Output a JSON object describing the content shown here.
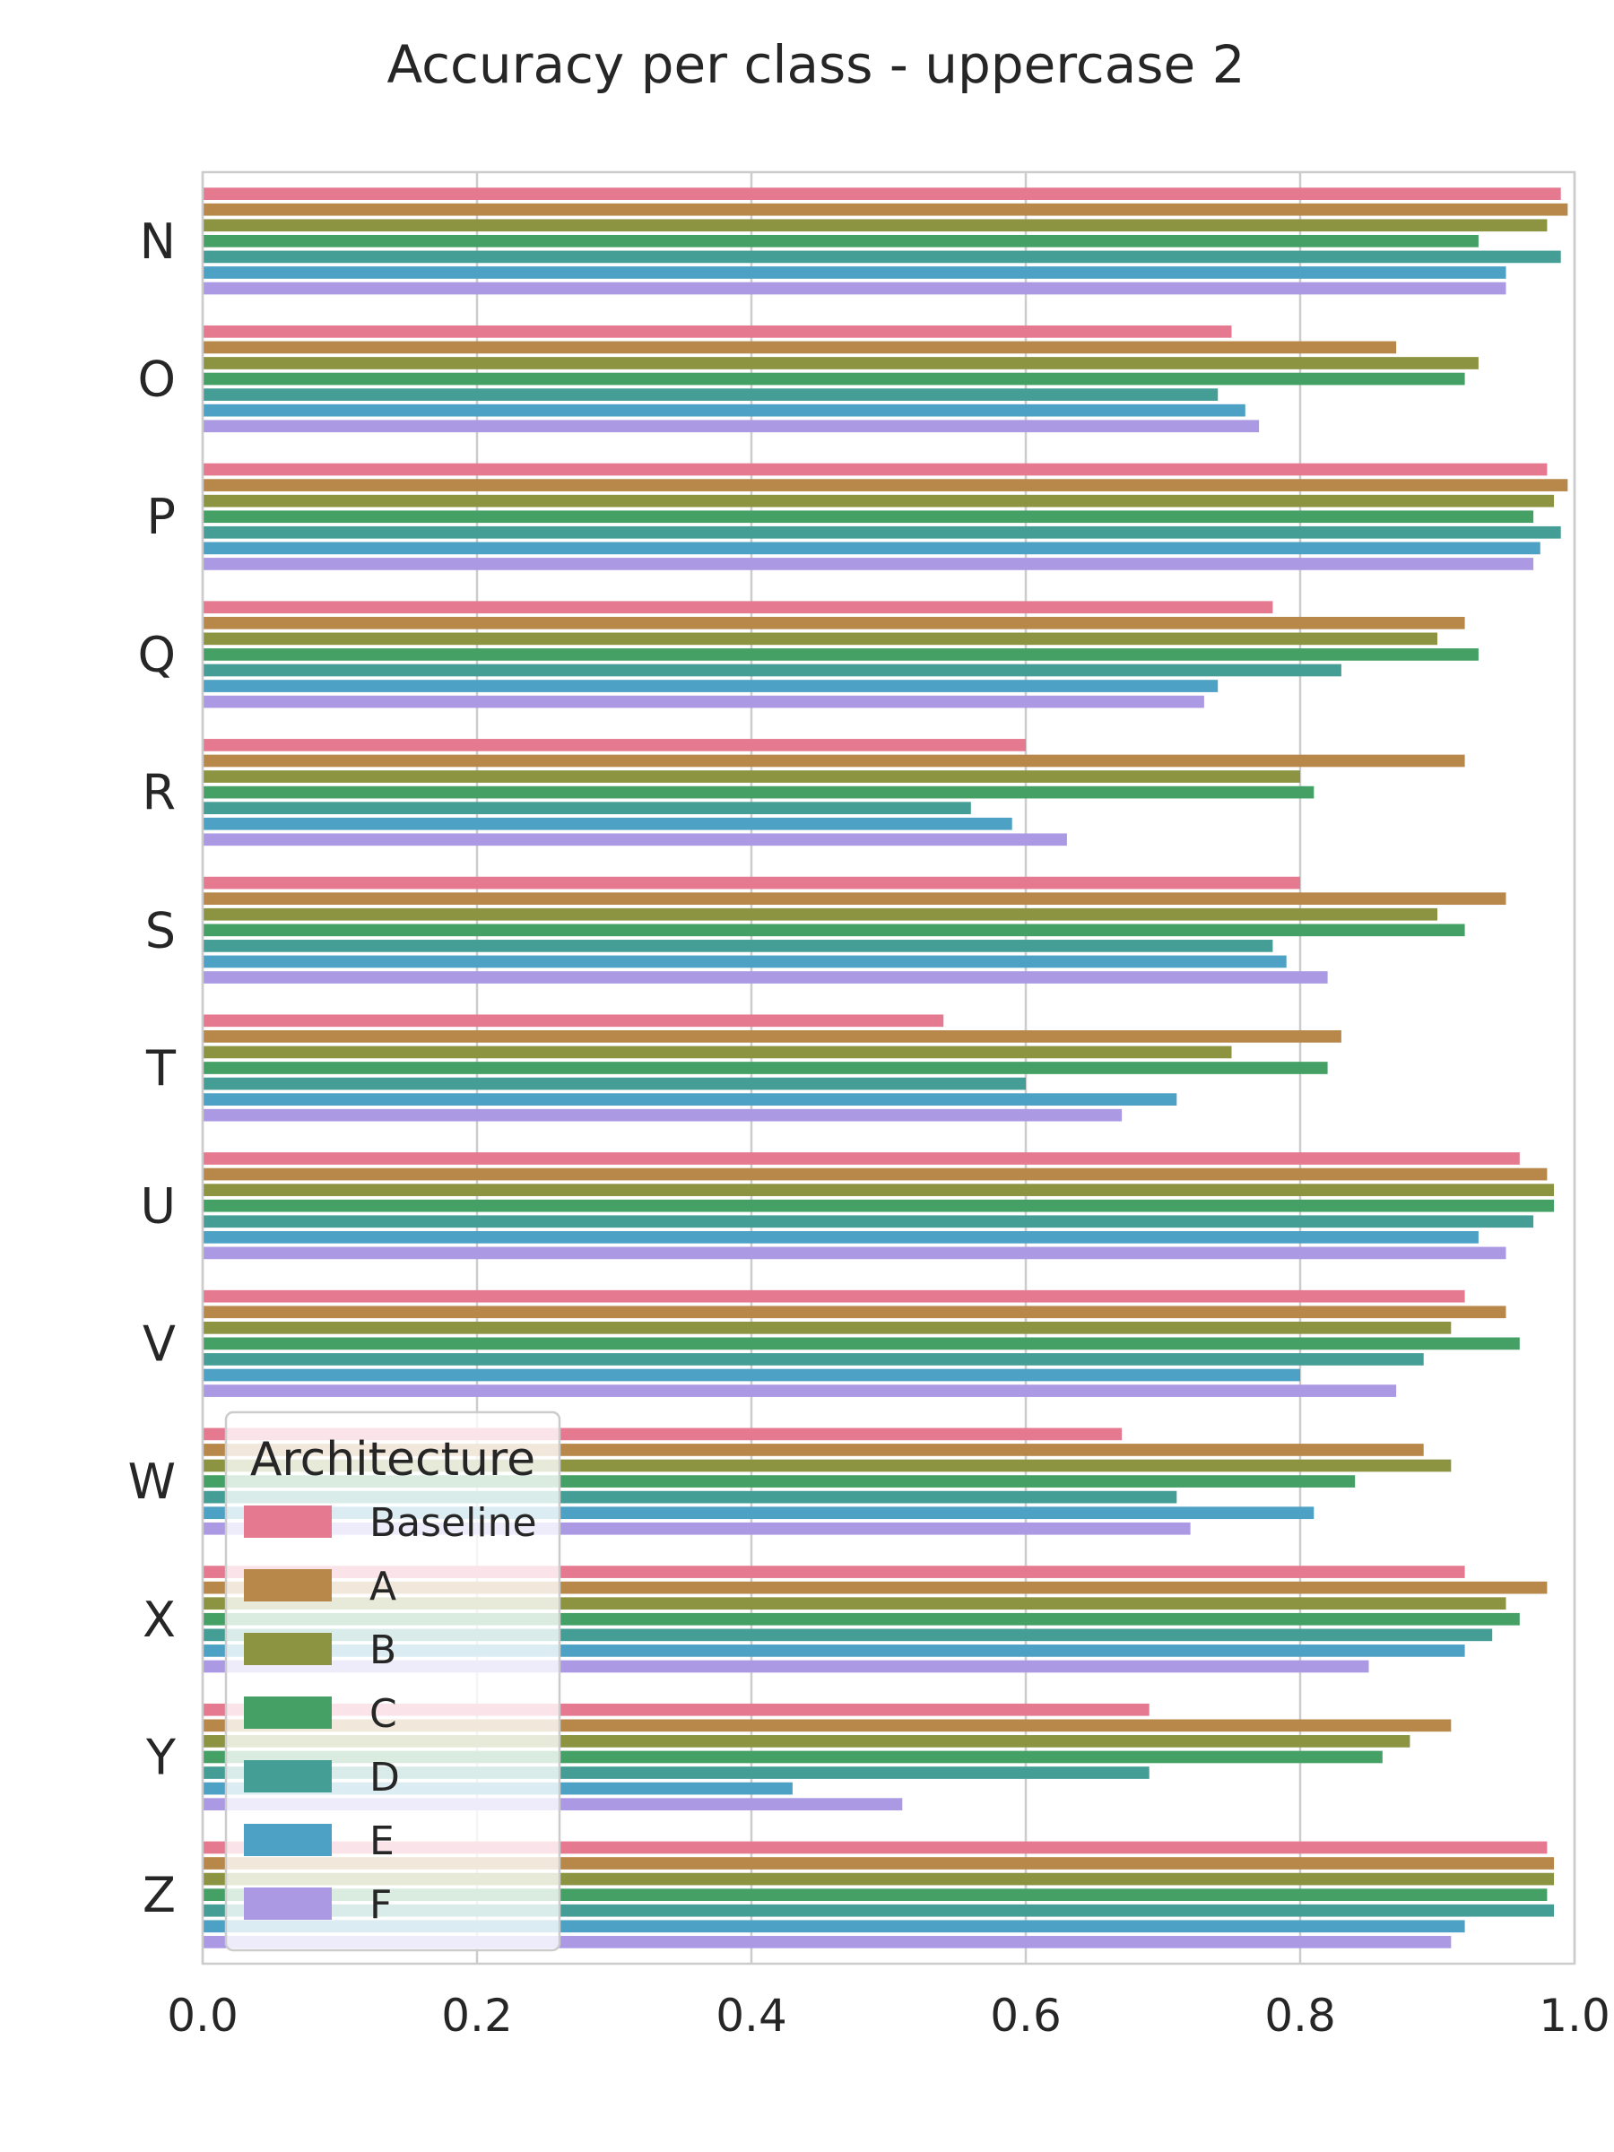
{
  "chart_data": {
    "type": "bar",
    "orientation": "horizontal",
    "title": "Accuracy per class - uppercase 2",
    "xlabel": "",
    "ylabel": "",
    "xlim": [
      0.0,
      1.0
    ],
    "xticks": [
      "0.0",
      "0.2",
      "0.4",
      "0.6",
      "0.8",
      "1.0"
    ],
    "grid": true,
    "categories": [
      "N",
      "O",
      "P",
      "Q",
      "R",
      "S",
      "T",
      "U",
      "V",
      "W",
      "X",
      "Y",
      "Z"
    ],
    "legend": {
      "title": "Architecture",
      "placement": "lower-left"
    },
    "series": [
      {
        "name": "Baseline",
        "color": "#e5798f",
        "values": [
          0.99,
          0.75,
          0.98,
          0.78,
          0.6,
          0.8,
          0.54,
          0.96,
          0.92,
          0.67,
          0.92,
          0.69,
          0.98
        ]
      },
      {
        "name": "A",
        "color": "#b8884a",
        "values": [
          0.995,
          0.87,
          0.995,
          0.92,
          0.92,
          0.95,
          0.83,
          0.98,
          0.95,
          0.89,
          0.98,
          0.91,
          0.985
        ]
      },
      {
        "name": "B",
        "color": "#8c9442",
        "values": [
          0.98,
          0.93,
          0.985,
          0.9,
          0.8,
          0.9,
          0.75,
          0.985,
          0.91,
          0.91,
          0.95,
          0.88,
          0.985
        ]
      },
      {
        "name": "C",
        "color": "#45a066",
        "values": [
          0.93,
          0.92,
          0.97,
          0.93,
          0.81,
          0.92,
          0.82,
          0.985,
          0.96,
          0.84,
          0.96,
          0.86,
          0.98
        ]
      },
      {
        "name": "D",
        "color": "#459e96",
        "values": [
          0.99,
          0.74,
          0.99,
          0.83,
          0.56,
          0.78,
          0.6,
          0.97,
          0.89,
          0.71,
          0.94,
          0.69,
          0.985
        ]
      },
      {
        "name": "E",
        "color": "#4ca1c4",
        "values": [
          0.95,
          0.76,
          0.975,
          0.74,
          0.59,
          0.79,
          0.71,
          0.93,
          0.8,
          0.81,
          0.92,
          0.43,
          0.92
        ]
      },
      {
        "name": "F",
        "color": "#ab9ae3",
        "values": [
          0.95,
          0.77,
          0.97,
          0.73,
          0.63,
          0.82,
          0.67,
          0.95,
          0.87,
          0.72,
          0.85,
          0.51,
          0.91
        ]
      }
    ]
  }
}
